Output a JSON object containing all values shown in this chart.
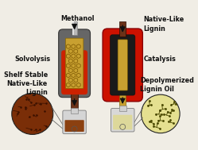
{
  "bg_color": "#f0ede5",
  "labels": {
    "methanol": "Methanol",
    "solvolysis": "Solvolysis",
    "shelf_stable": "Shelf Stable\nNative-Like\nLignin",
    "native_like": "Native-Like\nLignin",
    "catalysis": "Catalysis",
    "depolymerized": "Depolymerized\nLignin Oil"
  },
  "colors": {
    "reactor1_gray": "#666666",
    "reactor1_red": "#cc2200",
    "reactor1_honey": "#c8a030",
    "reactor1_tube": "#c0c0c0",
    "reactor2_red": "#cc1100",
    "reactor2_black": "#1a1a1a",
    "reactor2_honey": "#c8a030",
    "pipe_brown": "#6b3218",
    "pipe_honey": "#c8a030",
    "vial_glass": "#d8d8d8",
    "vial1_liquid": "#8b4010",
    "vial2_liquid": "#ddd89a",
    "circle1_bg": "#7a2e08",
    "circle2_bg": "#e5e090",
    "mol1_color": "#3a1000",
    "mol2_color": "#4a4800",
    "arrow_color": "#111111",
    "text_color": "#111111",
    "outline": "#333333"
  },
  "figsize": [
    2.49,
    1.89
  ],
  "dpi": 100
}
